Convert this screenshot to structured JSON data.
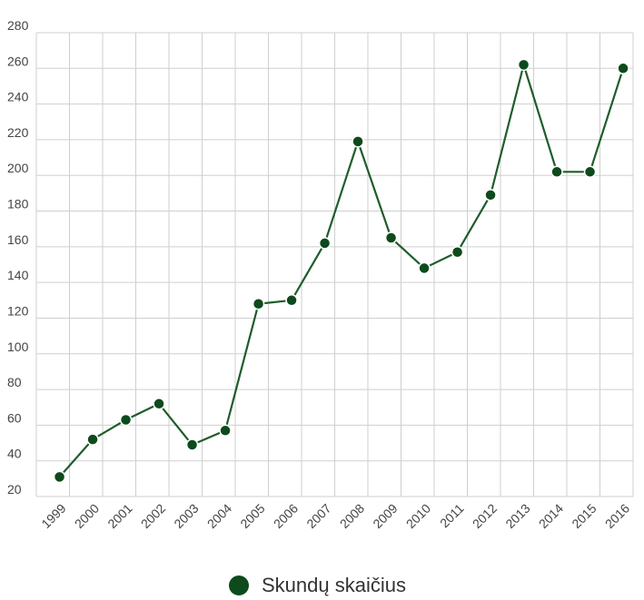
{
  "chart_data": {
    "type": "line",
    "title": "",
    "xlabel": "",
    "ylabel": "",
    "x": [
      "1999",
      "2000",
      "2001",
      "2002",
      "2003",
      "2004",
      "2005",
      "2006",
      "2007",
      "2008",
      "2009",
      "2010",
      "2011",
      "2012",
      "2013",
      "2014",
      "2015",
      "2016"
    ],
    "series": [
      {
        "name": "Skundų skaičius",
        "values": [
          31,
          52,
          63,
          72,
          49,
          57,
          128,
          130,
          162,
          219,
          165,
          148,
          157,
          189,
          262,
          202,
          202,
          260
        ]
      }
    ],
    "ylim": [
      20,
      280
    ],
    "yticks": [
      20,
      40,
      60,
      80,
      100,
      120,
      140,
      160,
      180,
      200,
      220,
      240,
      260,
      280
    ],
    "grid": true,
    "legend_position": "bottom",
    "colors": {
      "series": "#1f5c2c",
      "marker": "#0d4a1c",
      "grid": "#cfcfcf",
      "tick_text": "#444444"
    }
  }
}
